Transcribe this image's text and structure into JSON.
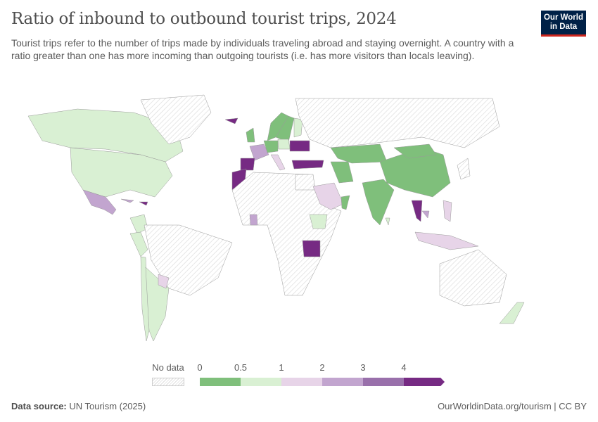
{
  "title": "Ratio of inbound to outbound tourist trips, 2024",
  "subtitle": "Tourist trips refer to the number of trips made by individuals traveling abroad and staying overnight. A country with a ratio greater than one has more incoming than outgoing tourists (i.e. has more visitors than locals leaving).",
  "logo": {
    "line1": "Our World",
    "line2": "in Data",
    "bg": "#002147",
    "accent": "#ce261e"
  },
  "legend": {
    "no_data_label": "No data",
    "ticks": [
      "0",
      "0.5",
      "1",
      "2",
      "3",
      "4"
    ],
    "bins": [
      {
        "range": [
          0,
          0.5
        ],
        "color": "#7fbf7b"
      },
      {
        "range": [
          0.5,
          1
        ],
        "color": "#d9f0d3"
      },
      {
        "range": [
          1,
          2
        ],
        "color": "#e7d4e8"
      },
      {
        "range": [
          2,
          3
        ],
        "color": "#c2a5cf"
      },
      {
        "range": [
          3,
          4
        ],
        "color": "#9970ab"
      },
      {
        "range": [
          4,
          null
        ],
        "color": "#762a83"
      }
    ]
  },
  "chart_data": {
    "type": "choropleth",
    "title": "Ratio of inbound to outbound tourist trips, 2024",
    "year": 2024,
    "regions": [
      {
        "name": "Canada",
        "bin": 1
      },
      {
        "name": "United States",
        "bin": 1
      },
      {
        "name": "Mexico",
        "bin": 3
      },
      {
        "name": "Greenland",
        "bin": null
      },
      {
        "name": "Cuba",
        "bin": 3
      },
      {
        "name": "Dominican Republic",
        "bin": 5
      },
      {
        "name": "Colombia",
        "bin": 1
      },
      {
        "name": "Peru",
        "bin": 1
      },
      {
        "name": "Brazil",
        "bin": null
      },
      {
        "name": "Chile",
        "bin": 1
      },
      {
        "name": "Argentina",
        "bin": 1
      },
      {
        "name": "Paraguay",
        "bin": 2
      },
      {
        "name": "Iceland",
        "bin": 5
      },
      {
        "name": "United Kingdom",
        "bin": 0
      },
      {
        "name": "Norway",
        "bin": 0
      },
      {
        "name": "Sweden",
        "bin": 0
      },
      {
        "name": "Finland",
        "bin": 1
      },
      {
        "name": "France",
        "bin": 3
      },
      {
        "name": "Spain",
        "bin": 5
      },
      {
        "name": "Germany",
        "bin": 0
      },
      {
        "name": "Poland",
        "bin": 1
      },
      {
        "name": "Ukraine",
        "bin": 5
      },
      {
        "name": "Italy",
        "bin": 2
      },
      {
        "name": "Turkey",
        "bin": 5
      },
      {
        "name": "Morocco",
        "bin": 5
      },
      {
        "name": "Russia",
        "bin": null
      },
      {
        "name": "Africa (most)",
        "bin": null
      },
      {
        "name": "Egypt",
        "bin": null
      },
      {
        "name": "Saudi Arabia",
        "bin": 2
      },
      {
        "name": "Oman",
        "bin": 0
      },
      {
        "name": "Iran",
        "bin": 0
      },
      {
        "name": "Kazakhstan",
        "bin": 0
      },
      {
        "name": "Ethiopia",
        "bin": 1
      },
      {
        "name": "Tanzania",
        "bin": 5
      },
      {
        "name": "Ghana",
        "bin": 3
      },
      {
        "name": "India",
        "bin": 0
      },
      {
        "name": "China",
        "bin": 0
      },
      {
        "name": "Mongolia",
        "bin": 0
      },
      {
        "name": "Thailand",
        "bin": 5
      },
      {
        "name": "Cambodia",
        "bin": 3
      },
      {
        "name": "Indonesia",
        "bin": 2
      },
      {
        "name": "Philippines",
        "bin": 2
      },
      {
        "name": "Japan",
        "bin": null
      },
      {
        "name": "Australia",
        "bin": null
      },
      {
        "name": "New Zealand",
        "bin": 1
      },
      {
        "name": "Sri Lanka",
        "bin": 1
      }
    ]
  },
  "footer": {
    "source_label": "Data source:",
    "source": "UN Tourism (2025)",
    "url": "OurWorldinData.org/tourism | CC BY"
  }
}
